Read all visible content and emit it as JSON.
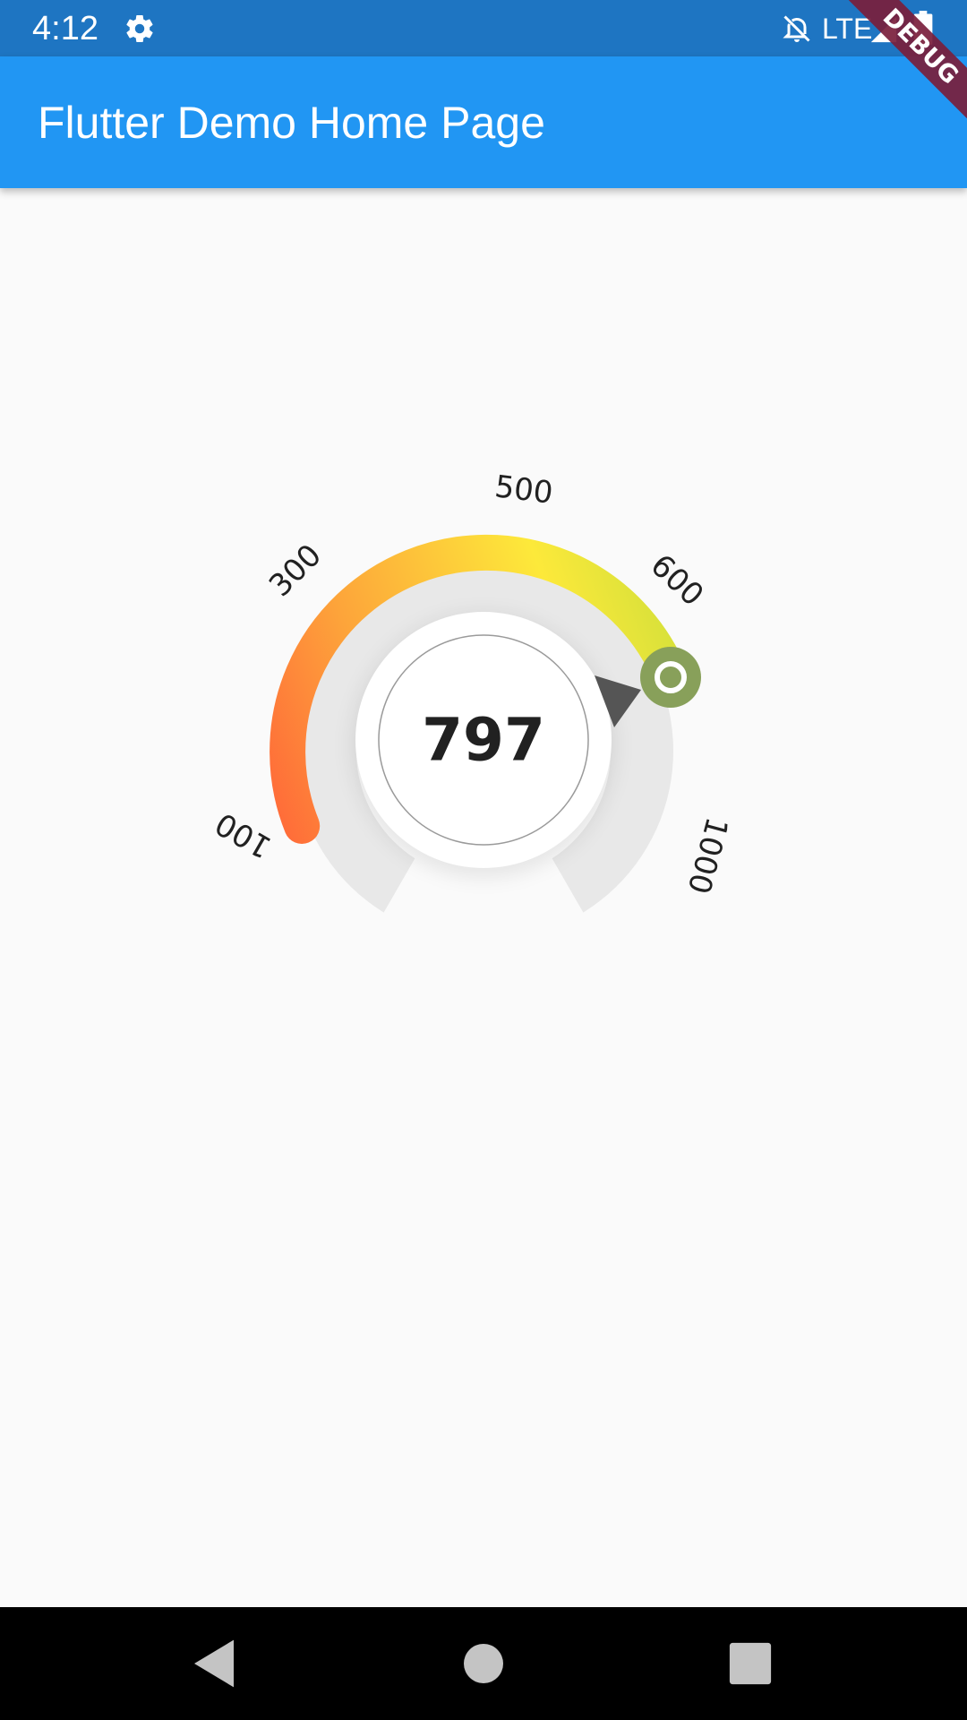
{
  "status_bar": {
    "time": "4:12",
    "network": "LTE",
    "icons": [
      "gear-icon",
      "bell-off-icon",
      "signal-icon",
      "battery-icon"
    ],
    "background_color": "#1e75c2"
  },
  "app_bar": {
    "title": "Flutter Demo Home Page",
    "background_color": "#2196f3"
  },
  "debug_banner": {
    "label": "DEBUG",
    "color": "#7a1e3c"
  },
  "gauge": {
    "value": "797",
    "tick_labels": [
      "100",
      "300",
      "500",
      "600",
      "1000"
    ],
    "progress_colors": [
      "#ff6a39",
      "#fda43a",
      "#fdca3a",
      "#fde93a",
      "#d4e03a"
    ],
    "track_color": "#e8e8e8",
    "handle_color": "#88a05a",
    "pointer_color": "#555555"
  },
  "nav_bar": {
    "buttons": [
      "back-icon",
      "home-icon",
      "recents-icon"
    ]
  }
}
